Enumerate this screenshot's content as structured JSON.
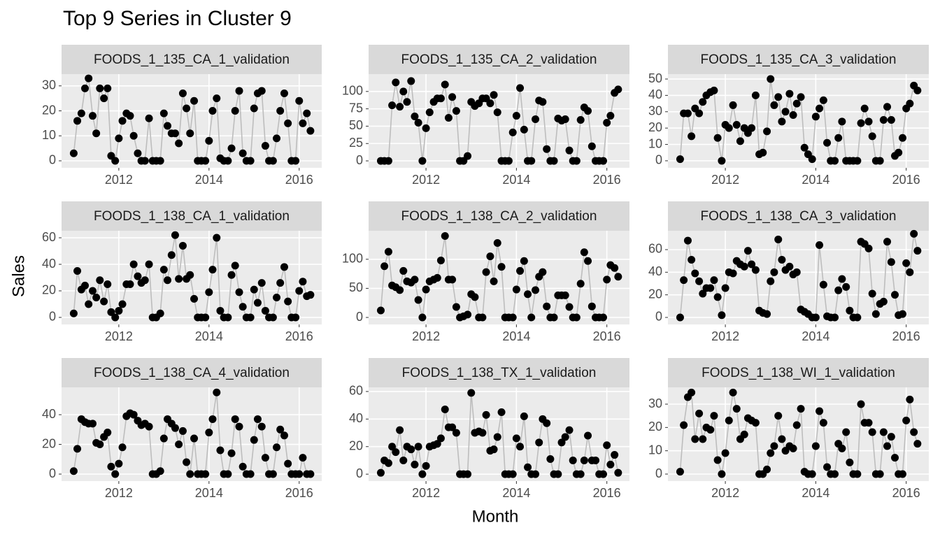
{
  "chart_data": {
    "type": "line",
    "title": "Top 9 Series in Cluster 9",
    "x_label": "Month",
    "y_label": "Sales",
    "point_color": "#000000",
    "line_color": "#bdbdbd",
    "grid": true,
    "xlim": [
      2010.73,
      2016.5
    ],
    "xticks": [
      2012,
      2014,
      2016
    ],
    "x": [
      2011,
      2011.08,
      2011.17,
      2011.25,
      2011.33,
      2011.42,
      2011.5,
      2011.58,
      2011.67,
      2011.75,
      2011.83,
      2011.92,
      2012,
      2012.08,
      2012.17,
      2012.25,
      2012.33,
      2012.42,
      2012.5,
      2012.58,
      2012.67,
      2012.75,
      2012.83,
      2012.92,
      2013,
      2013.08,
      2013.17,
      2013.25,
      2013.33,
      2013.42,
      2013.5,
      2013.58,
      2013.67,
      2013.75,
      2013.83,
      2013.92,
      2014,
      2014.08,
      2014.17,
      2014.25,
      2014.33,
      2014.42,
      2014.5,
      2014.58,
      2014.67,
      2014.75,
      2014.83,
      2014.92,
      2015,
      2015.08,
      2015.17,
      2015.25,
      2015.33,
      2015.42,
      2015.5,
      2015.58,
      2015.67,
      2015.75,
      2015.83,
      2015.92,
      2016,
      2016.08,
      2016.17,
      2016.25
    ],
    "series": [
      {
        "name": "FOODS_1_135_CA_1_validation",
        "ylim": [
          -2.8,
          34.7
        ],
        "yticks": [
          0,
          10,
          20,
          30
        ],
        "values": [
          3,
          16,
          19,
          29,
          33,
          18,
          11,
          29,
          25,
          29,
          2,
          0,
          9,
          16,
          19,
          18,
          10,
          3,
          0,
          0,
          17,
          0,
          0,
          0,
          19,
          14,
          11,
          11,
          7,
          27,
          21,
          11,
          24,
          0,
          0,
          0,
          8,
          20,
          25,
          1,
          0,
          0,
          5,
          20,
          28,
          3,
          0,
          0,
          21,
          27,
          28,
          6,
          0,
          0,
          9,
          20,
          27,
          15,
          0,
          0,
          24,
          15,
          19,
          12
        ]
      },
      {
        "name": "FOODS_1_135_CA_2_validation",
        "ylim": [
          -10,
          125
        ],
        "yticks": [
          0,
          25,
          50,
          75,
          100
        ],
        "values": [
          0,
          0,
          0,
          80,
          113,
          78,
          100,
          85,
          115,
          64,
          55,
          0,
          47,
          70,
          85,
          90,
          90,
          110,
          62,
          92,
          72,
          0,
          0,
          7,
          85,
          79,
          83,
          90,
          90,
          83,
          95,
          70,
          0,
          0,
          0,
          41,
          65,
          105,
          45,
          0,
          0,
          60,
          87,
          85,
          17,
          0,
          0,
          61,
          58,
          60,
          15,
          0,
          0,
          59,
          77,
          72,
          21,
          0,
          0,
          0,
          55,
          65,
          98,
          103
        ]
      },
      {
        "name": "FOODS_1_135_CA_3_validation",
        "ylim": [
          -4.3,
          53
        ],
        "yticks": [
          0,
          10,
          20,
          30,
          40,
          50
        ],
        "values": [
          1,
          29,
          29,
          15,
          32,
          29,
          36,
          40,
          42,
          43,
          14,
          0,
          22,
          20,
          34,
          22,
          12,
          20,
          17,
          20,
          40,
          4,
          5,
          18,
          50,
          34,
          39,
          24,
          30,
          41,
          28,
          35,
          39,
          8,
          4,
          1,
          27,
          32,
          37,
          11,
          0,
          0,
          14,
          24,
          0,
          0,
          0,
          0,
          23,
          32,
          24,
          15,
          0,
          0,
          25,
          33,
          25,
          3,
          5,
          14,
          32,
          35,
          46,
          43
        ]
      },
      {
        "name": "FOODS_1_138_CA_1_validation",
        "ylim": [
          -5.3,
          65.3
        ],
        "yticks": [
          0,
          20,
          40,
          60
        ],
        "values": [
          3,
          35,
          21,
          24,
          10,
          20,
          15,
          28,
          12,
          25,
          4,
          0,
          5,
          10,
          25,
          25,
          40,
          31,
          26,
          28,
          40,
          0,
          0,
          3,
          36,
          28,
          47,
          62,
          29,
          54,
          29,
          32,
          14,
          0,
          0,
          0,
          19,
          36,
          60,
          5,
          0,
          0,
          32,
          39,
          19,
          8,
          0,
          0,
          21,
          11,
          26,
          5,
          0,
          0,
          15,
          26,
          38,
          12,
          0,
          0,
          20,
          27,
          16,
          17
        ]
      },
      {
        "name": "FOODS_1_138_CA_2_validation",
        "ylim": [
          -12,
          149
        ],
        "yticks": [
          0,
          50,
          100
        ],
        "values": [
          12,
          88,
          113,
          55,
          52,
          47,
          80,
          62,
          60,
          65,
          30,
          0,
          48,
          62,
          65,
          68,
          98,
          140,
          65,
          65,
          18,
          0,
          2,
          5,
          40,
          35,
          0,
          0,
          78,
          105,
          62,
          128,
          87,
          0,
          0,
          0,
          48,
          80,
          97,
          40,
          0,
          47,
          70,
          78,
          19,
          0,
          0,
          38,
          38,
          38,
          18,
          0,
          0,
          58,
          112,
          97,
          19,
          0,
          0,
          0,
          65,
          90,
          85,
          70
        ]
      },
      {
        "name": "FOODS_1_138_CA_3_validation",
        "ylim": [
          -6.2,
          76.7
        ],
        "yticks": [
          0,
          20,
          40,
          60
        ],
        "values": [
          0,
          33,
          68,
          51,
          39,
          32,
          21,
          26,
          26,
          33,
          18,
          2,
          26,
          40,
          39,
          50,
          47,
          45,
          59,
          47,
          42,
          6,
          4,
          3,
          32,
          40,
          69,
          51,
          42,
          45,
          38,
          40,
          7,
          5,
          3,
          0,
          0,
          64,
          29,
          1,
          0,
          0,
          24,
          34,
          27,
          6,
          0,
          0,
          67,
          65,
          61,
          21,
          3,
          12,
          14,
          67,
          49,
          20,
          2,
          3,
          48,
          40,
          74,
          59
        ]
      },
      {
        "name": "FOODS_1_138_CA_4_validation",
        "ylim": [
          -4.7,
          58.4
        ],
        "yticks": [
          0,
          20,
          40
        ],
        "values": [
          2,
          17,
          37,
          35,
          34,
          34,
          21,
          20,
          25,
          28,
          5,
          0,
          7,
          18,
          39,
          41,
          40,
          36,
          33,
          34,
          32,
          0,
          0,
          2,
          24,
          37,
          34,
          31,
          20,
          29,
          8,
          0,
          24,
          0,
          0,
          0,
          28,
          37,
          55,
          16,
          0,
          0,
          14,
          37,
          32,
          5,
          0,
          0,
          23,
          37,
          32,
          11,
          0,
          0,
          18,
          30,
          26,
          7,
          0,
          0,
          0,
          11,
          0,
          0
        ]
      },
      {
        "name": "FOODS_1_138_TX_1_validation",
        "ylim": [
          -5,
          63
        ],
        "yticks": [
          0,
          20,
          40,
          60
        ],
        "values": [
          1,
          10,
          8,
          20,
          16,
          32,
          10,
          20,
          18,
          7,
          20,
          0,
          6,
          20,
          21,
          22,
          26,
          47,
          34,
          34,
          30,
          0,
          0,
          0,
          59,
          30,
          31,
          30,
          43,
          17,
          18,
          27,
          45,
          0,
          0,
          0,
          26,
          20,
          42,
          5,
          0,
          0,
          23,
          40,
          37,
          11,
          0,
          0,
          23,
          27,
          32,
          10,
          0,
          0,
          10,
          28,
          10,
          10,
          0,
          0,
          21,
          7,
          14,
          1
        ]
      },
      {
        "name": "FOODS_1_138_WI_1_validation",
        "ylim": [
          -3,
          37.2
        ],
        "yticks": [
          0,
          10,
          20,
          30
        ],
        "values": [
          1,
          21,
          33,
          35,
          15,
          26,
          15,
          20,
          19,
          25,
          6,
          0,
          9,
          23,
          35,
          28,
          15,
          17,
          24,
          23,
          22,
          0,
          0,
          2,
          9,
          12,
          25,
          15,
          10,
          12,
          11,
          21,
          28,
          1,
          0,
          0,
          12,
          27,
          22,
          3,
          0,
          0,
          13,
          11,
          18,
          5,
          0,
          0,
          30,
          22,
          22,
          18,
          0,
          0,
          18,
          12,
          16,
          7,
          0,
          0,
          23,
          32,
          18,
          13
        ]
      }
    ]
  }
}
